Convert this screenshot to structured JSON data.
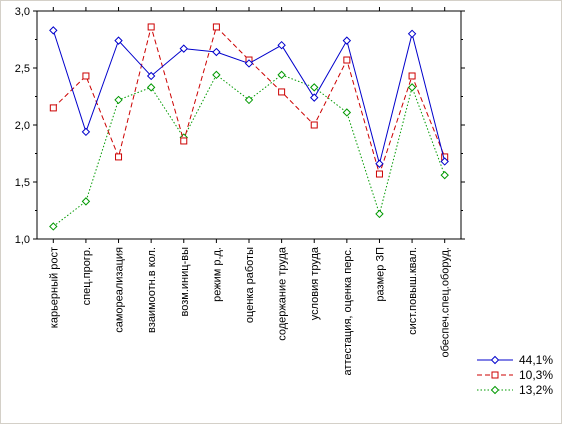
{
  "chart_data": {
    "type": "line",
    "title": "",
    "xlabel": "",
    "ylabel": "",
    "ylim": [
      1.0,
      3.0
    ],
    "y_ticks": [
      "1,0",
      "1,5",
      "2,0",
      "2,5",
      "3,0"
    ],
    "grid": false,
    "legend_position": "bottom-right",
    "categories": [
      "карьерный рост",
      "спец.прогр.",
      "самореализация",
      "взаимоотн.в кол.",
      "возм.иниц-вы",
      "режим р.д.",
      "оценка работы",
      "содержание труда",
      "условия труда",
      "аттестация, оценка перс.",
      "размер ЗП",
      "сист.повыш.квал.",
      "обеспеч.спец.оборуд."
    ],
    "series": [
      {
        "name": "44,1%",
        "color": "#0000cc",
        "dash": "solid",
        "marker": "diamond",
        "values": [
          2.83,
          1.94,
          2.74,
          2.43,
          2.67,
          2.64,
          2.54,
          2.7,
          2.24,
          2.74,
          1.66,
          2.8,
          1.68
        ]
      },
      {
        "name": "10,3%",
        "color": "#cc0000",
        "dash": "dashed",
        "marker": "square",
        "values": [
          2.15,
          2.43,
          1.72,
          2.86,
          1.86,
          2.86,
          2.57,
          2.29,
          2.0,
          2.57,
          1.57,
          2.43,
          1.72
        ]
      },
      {
        "name": "13,2%",
        "color": "#009900",
        "dash": "dotted",
        "marker": "diamond",
        "values": [
          1.11,
          1.33,
          2.22,
          2.33,
          1.89,
          2.44,
          2.22,
          2.44,
          2.33,
          2.11,
          1.22,
          2.33,
          1.56
        ]
      }
    ]
  }
}
